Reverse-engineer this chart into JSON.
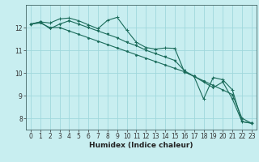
{
  "xlabel": "Humidex (Indice chaleur)",
  "bg_color": "#c8eef0",
  "grid_color": "#a0d8dc",
  "line_color": "#1a6b5a",
  "xlim": [
    -0.5,
    23.5
  ],
  "ylim": [
    7.5,
    13.0
  ],
  "yticks": [
    8,
    9,
    10,
    11,
    12
  ],
  "xticks": [
    0,
    1,
    2,
    3,
    4,
    5,
    6,
    7,
    8,
    9,
    10,
    11,
    12,
    13,
    14,
    15,
    16,
    17,
    18,
    19,
    20,
    21,
    22,
    23
  ],
  "series1_x": [
    0,
    1,
    2,
    3,
    4,
    5,
    6,
    7,
    8,
    9,
    10,
    11,
    12,
    13,
    14,
    15,
    16,
    17,
    18,
    19,
    20,
    21,
    22,
    23
  ],
  "series1_y": [
    12.15,
    12.25,
    12.2,
    12.38,
    12.42,
    12.3,
    12.12,
    11.95,
    12.32,
    12.45,
    11.88,
    11.35,
    11.12,
    11.05,
    11.1,
    11.08,
    10.05,
    9.85,
    8.85,
    9.8,
    9.7,
    9.25,
    7.85,
    7.78
  ],
  "series2_x": [
    0,
    1,
    2,
    3,
    4,
    5,
    6,
    7,
    8,
    9,
    10,
    11,
    12,
    13,
    14,
    15,
    16,
    17,
    18,
    19,
    20,
    21,
    22,
    23
  ],
  "series2_y": [
    12.15,
    12.25,
    11.95,
    12.15,
    12.3,
    12.15,
    12.0,
    11.85,
    11.7,
    11.55,
    11.35,
    11.2,
    11.0,
    10.85,
    10.7,
    10.55,
    10.1,
    9.85,
    9.6,
    9.35,
    9.6,
    8.85,
    7.85,
    7.78
  ],
  "series3_x": [
    0,
    1,
    2,
    3,
    4,
    5,
    6,
    7,
    8,
    9,
    10,
    11,
    12,
    13,
    14,
    15,
    16,
    17,
    18,
    19,
    20,
    21,
    22,
    23
  ],
  "series3_y": [
    12.15,
    12.2,
    12.0,
    12.0,
    11.85,
    11.7,
    11.55,
    11.4,
    11.25,
    11.1,
    10.95,
    10.8,
    10.65,
    10.5,
    10.35,
    10.2,
    10.05,
    9.85,
    9.65,
    9.45,
    9.25,
    9.05,
    8.0,
    7.78
  ],
  "tick_fontsize": 5.5,
  "xlabel_fontsize": 6.5,
  "lw": 0.8,
  "marker_size": 2.0
}
